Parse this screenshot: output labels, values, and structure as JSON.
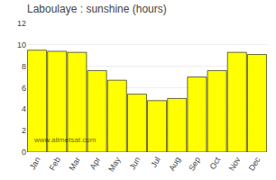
{
  "chart_data": {
    "type": "bar",
    "title": "Laboulaye : sunshine (hours)",
    "categories": [
      "Jan",
      "Feb",
      "Mar",
      "Apr",
      "May",
      "Jun",
      "Jul",
      "Aug",
      "Sep",
      "Oct",
      "Nov",
      "Dec"
    ],
    "values": [
      9.5,
      9.4,
      9.3,
      7.6,
      6.7,
      5.4,
      4.8,
      5.0,
      7.0,
      7.6,
      9.3,
      9.1
    ],
    "color": "#ffff00",
    "ylim": [
      0,
      12
    ],
    "yticks": [
      0,
      2,
      4,
      6,
      8,
      10,
      12
    ],
    "grid": true,
    "annotations": [
      "www.allmetsat.com"
    ]
  }
}
